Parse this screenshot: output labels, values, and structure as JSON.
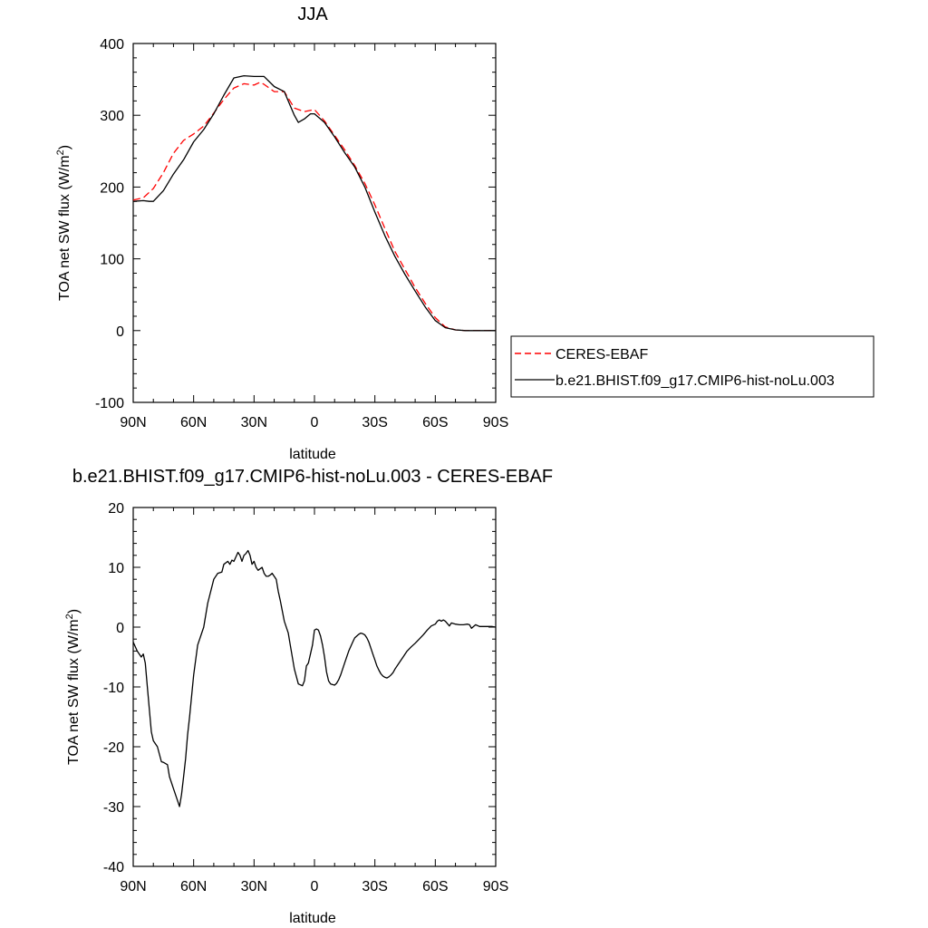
{
  "chart_data": [
    {
      "type": "line",
      "title": "JJA",
      "xlabel": "latitude",
      "ylabel": "TOA net SW flux (W/m",
      "ylabel_sup": "2",
      "ylabel_close": ")",
      "xlim": [
        90,
        -90
      ],
      "ylim": [
        -100,
        400
      ],
      "x_ticks": [
        90,
        60,
        30,
        0,
        -30,
        -60,
        -90
      ],
      "x_tick_labels": [
        "90N",
        "60N",
        "30N",
        "0",
        "30S",
        "60S",
        "90S"
      ],
      "y_ticks": [
        400,
        300,
        200,
        100,
        0,
        -100
      ],
      "y_tick_labels": [
        "400",
        "300",
        "200",
        "100",
        "0",
        "-100"
      ],
      "grid": false,
      "legend_position": "right",
      "series": [
        {
          "name": "CERES-EBAF",
          "color": "#ff0000",
          "dash": "dashed",
          "x": [
            90,
            85,
            80,
            75,
            70,
            65,
            60,
            55,
            50,
            45,
            40,
            35,
            30,
            27,
            25,
            20,
            15,
            10,
            5,
            0,
            -5,
            -10,
            -15,
            -20,
            -25,
            -30,
            -35,
            -40,
            -45,
            -50,
            -55,
            -60,
            -65,
            -70,
            -75,
            -80,
            -85,
            -90
          ],
          "y": [
            182,
            185,
            198,
            220,
            247,
            265,
            274,
            285,
            303,
            322,
            338,
            344,
            342,
            346,
            343,
            333,
            333,
            310,
            305,
            308,
            292,
            272,
            252,
            230,
            205,
            175,
            142,
            110,
            85,
            60,
            38,
            18,
            5,
            1,
            0,
            0,
            0,
            0
          ]
        },
        {
          "name": "b.e21.BHIST.f09_g17.CMIP6-hist-noLu.003",
          "color": "#000000",
          "dash": "solid",
          "x": [
            90,
            85,
            82,
            80,
            75,
            70,
            65,
            60,
            55,
            50,
            45,
            40,
            35,
            30,
            25,
            20,
            15,
            10,
            8,
            5,
            2,
            0,
            -5,
            -10,
            -15,
            -20,
            -25,
            -30,
            -35,
            -40,
            -45,
            -50,
            -55,
            -60,
            -65,
            -70,
            -75,
            -80,
            -85,
            -90
          ],
          "y": [
            180,
            181,
            180,
            180,
            195,
            218,
            238,
            263,
            280,
            302,
            328,
            352,
            355,
            354,
            354,
            340,
            333,
            300,
            290,
            295,
            302,
            302,
            290,
            270,
            248,
            228,
            200,
            165,
            132,
            103,
            78,
            55,
            33,
            14,
            4,
            1,
            0,
            0,
            0,
            0
          ]
        }
      ]
    },
    {
      "type": "line",
      "title": "b.e21.BHIST.f09_g17.CMIP6-hist-noLu.003 - CERES-EBAF",
      "xlabel": "latitude",
      "ylabel": "TOA net SW flux (W/m",
      "ylabel_sup": "2",
      "ylabel_close": ")",
      "xlim": [
        90,
        -90
      ],
      "ylim": [
        -40,
        20
      ],
      "x_ticks": [
        90,
        60,
        30,
        0,
        -30,
        -60,
        -90
      ],
      "x_tick_labels": [
        "90N",
        "60N",
        "30N",
        "0",
        "30S",
        "60S",
        "90S"
      ],
      "y_ticks": [
        20,
        10,
        0,
        -10,
        -20,
        -30,
        -40
      ],
      "y_tick_labels": [
        "20",
        "10",
        "0",
        "-10",
        "-20",
        "-30",
        "-40"
      ],
      "grid": false,
      "series": [
        {
          "color": "#000000",
          "dash": "solid",
          "x": [
            90,
            88,
            86,
            85,
            84,
            83,
            81,
            80,
            78,
            76,
            75,
            73,
            72,
            70,
            68,
            67,
            66,
            65,
            64,
            63,
            62,
            60,
            58,
            55,
            53,
            50,
            48,
            46,
            45,
            43,
            42,
            41,
            40,
            38,
            37,
            36,
            35,
            34,
            33,
            32,
            31,
            30,
            29,
            28,
            26,
            25,
            24,
            23,
            22,
            21,
            19,
            18,
            17,
            15,
            13,
            12,
            10,
            8,
            6,
            5,
            4,
            3,
            1,
            0,
            -1,
            -2,
            -3,
            -4,
            -5,
            -6,
            -7,
            -8,
            -9,
            -10,
            -11,
            -12,
            -13,
            -14,
            -15,
            -17,
            -19,
            -20,
            -22,
            -23,
            -24,
            -25,
            -26,
            -27,
            -28,
            -29,
            -30,
            -31,
            -32,
            -33,
            -34,
            -35,
            -36,
            -37,
            -38,
            -39,
            -40,
            -42,
            -44,
            -46,
            -48,
            -50,
            -52,
            -54,
            -56,
            -58,
            -60,
            -61,
            -62,
            -63,
            -64,
            -65,
            -67,
            -68,
            -70,
            -72,
            -74,
            -76,
            -77,
            -78,
            -80,
            -82,
            -84,
            -86,
            -88,
            -90
          ],
          "y": [
            -2.5,
            -4,
            -5,
            -4.5,
            -6,
            -10,
            -17.5,
            -19,
            -20,
            -22.5,
            -22.6,
            -23,
            -25,
            -27,
            -29,
            -30,
            -28,
            -25,
            -22,
            -18,
            -15,
            -8,
            -3,
            0,
            4,
            8,
            9,
            9.2,
            10.5,
            11,
            10.5,
            11.2,
            11,
            12.5,
            12,
            11,
            12,
            12.3,
            12.8,
            12,
            10.5,
            11,
            10,
            9.5,
            10,
            9,
            8.5,
            8.5,
            8.7,
            9,
            8,
            6,
            4.5,
            1,
            -1,
            -3,
            -7,
            -9.5,
            -9.8,
            -9,
            -6.5,
            -6,
            -3,
            -0.5,
            -0.3,
            -0.5,
            -1.5,
            -3,
            -5,
            -7.5,
            -9,
            -9.5,
            -9.6,
            -9.7,
            -9.4,
            -8.8,
            -8,
            -7,
            -6,
            -4,
            -2.5,
            -1.8,
            -1.2,
            -1,
            -1.1,
            -1.3,
            -1.8,
            -2.5,
            -3.5,
            -4.5,
            -5.5,
            -6.5,
            -7.2,
            -7.8,
            -8.2,
            -8.4,
            -8.5,
            -8.3,
            -8,
            -7.6,
            -7,
            -6,
            -5,
            -4,
            -3.3,
            -2.7,
            -2,
            -1.3,
            -0.5,
            0.2,
            0.5,
            1,
            1.2,
            1,
            1.2,
            1,
            0.2,
            0.7,
            0.5,
            0.4,
            0.4,
            0.5,
            0.4,
            -0.2,
            0.4,
            0.1,
            0.1,
            0.1,
            0.1,
            0
          ]
        }
      ]
    }
  ]
}
